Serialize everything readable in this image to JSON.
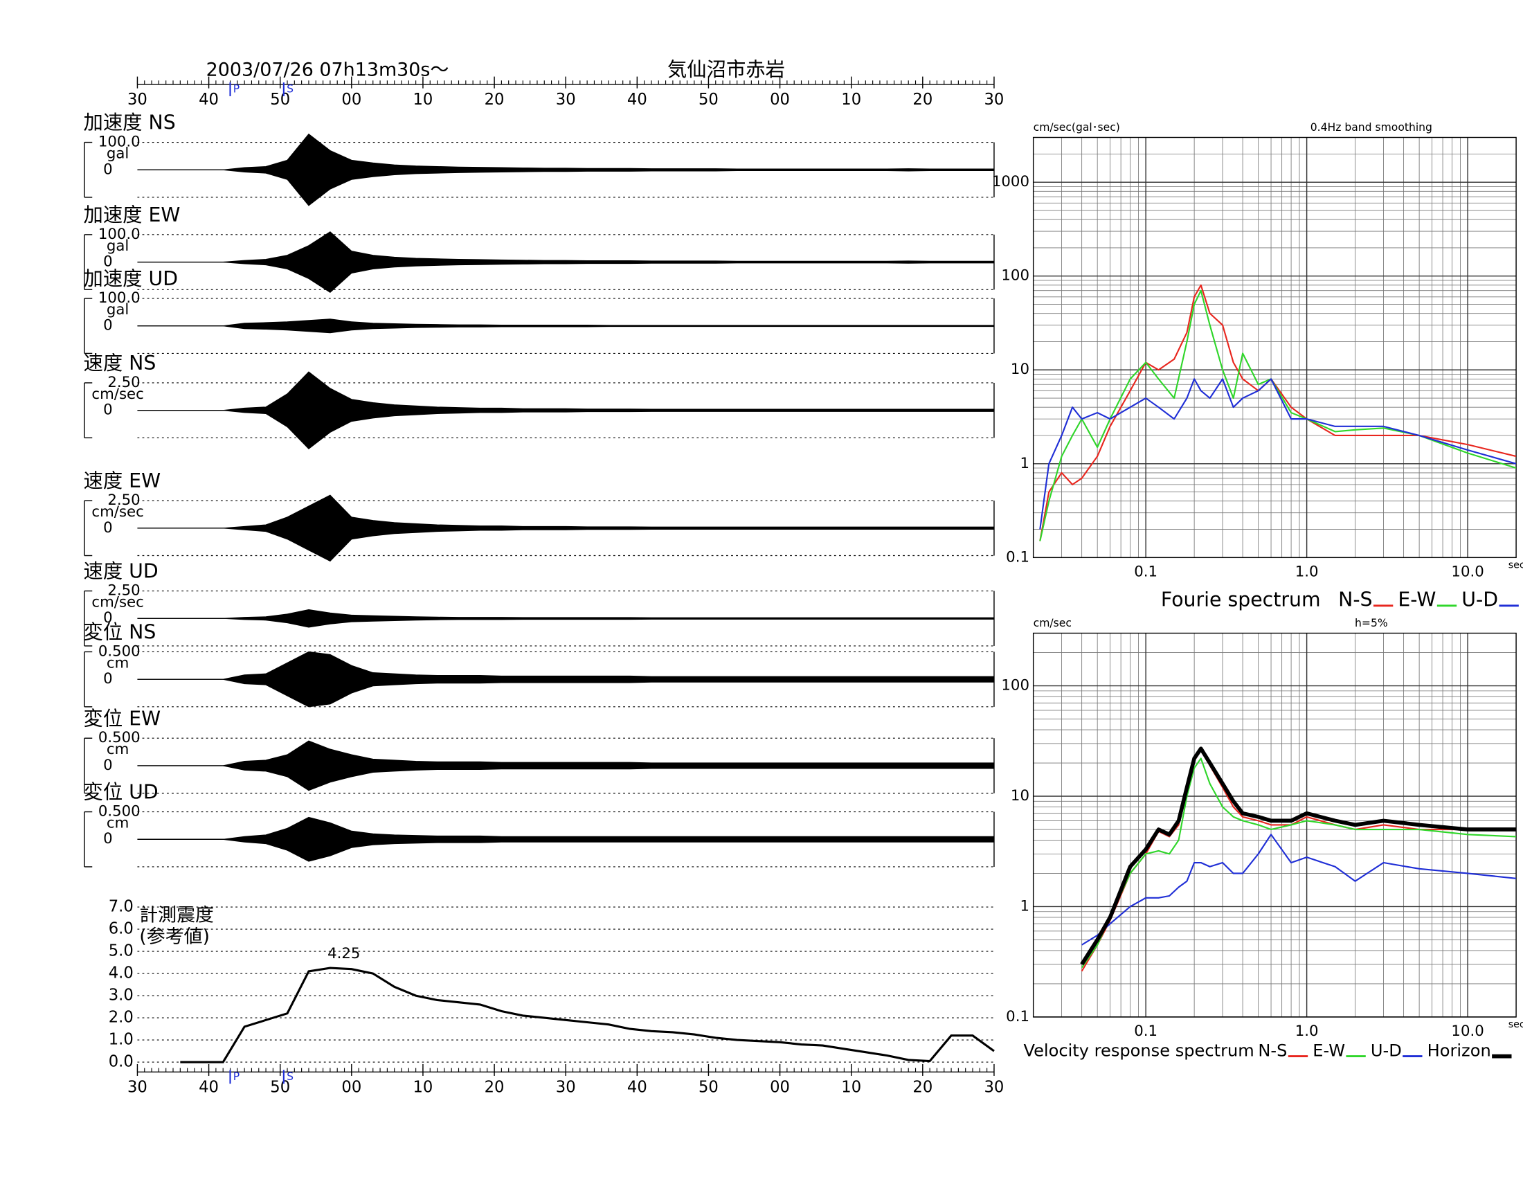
{
  "chart_data": [
    {
      "type": "seismogram",
      "title": "2003/07/26  07h13m30s〜",
      "subtitle": "気仙沼市赤岩",
      "xlim": [
        30,
        150
      ],
      "xticks": [
        30,
        40,
        50,
        {
          "value": 60,
          "label": "00"
        },
        {
          "value": 70,
          "label": "10"
        },
        {
          "value": 80,
          "label": "20"
        },
        {
          "value": 90,
          "label": "30"
        },
        {
          "value": 100,
          "label": "40"
        },
        {
          "value": 110,
          "label": "50"
        },
        {
          "value": 120,
          "label": "00"
        },
        {
          "value": 130,
          "label": "10"
        },
        {
          "value": 140,
          "label": "20"
        },
        {
          "value": 150,
          "label": "30"
        }
      ],
      "phases": [
        {
          "value": 43,
          "label": "P"
        },
        {
          "value": 50.5,
          "label": "S"
        }
      ],
      "x": [
        30,
        33,
        36,
        39,
        42,
        45,
        48,
        51,
        54,
        57,
        60,
        63,
        66,
        69,
        72,
        75,
        78,
        81,
        84,
        87,
        90,
        93,
        96,
        99,
        102,
        105,
        108,
        111,
        114,
        117,
        120,
        123,
        126,
        129,
        132,
        135,
        138,
        141,
        144,
        147,
        150
      ],
      "panels": [
        {
          "name": "加速度 NS",
          "unit": "gal",
          "ylim": [
            -100,
            100
          ],
          "yticks": [
            {
              "value": 100,
              "label": "100.0"
            },
            0
          ],
          "values": [
            0,
            0,
            0,
            0,
            0,
            8,
            12,
            35,
            130,
            70,
            35,
            25,
            18,
            14,
            12,
            10,
            9,
            8,
            7,
            6,
            6,
            5,
            5,
            5,
            4,
            4,
            4,
            4,
            3,
            3,
            3,
            3,
            3,
            3,
            3,
            3,
            4,
            3,
            3,
            3,
            3
          ]
        },
        {
          "name": "加速度 EW",
          "unit": "gal",
          "ylim": [
            -100,
            100
          ],
          "yticks": [
            {
              "value": 100,
              "label": "100.0"
            },
            0
          ],
          "values": [
            0,
            0,
            0,
            0,
            0,
            6,
            10,
            25,
            60,
            110,
            40,
            25,
            18,
            14,
            12,
            10,
            9,
            8,
            7,
            6,
            6,
            5,
            5,
            5,
            4,
            4,
            4,
            4,
            3,
            3,
            3,
            3,
            3,
            3,
            3,
            3,
            4,
            3,
            3,
            3,
            3
          ]
        },
        {
          "name": "加速度 UD",
          "unit": "gal",
          "ylim": [
            -100,
            100
          ],
          "yticks": [
            {
              "value": 100,
              "label": "100.0"
            },
            0
          ],
          "values": [
            0,
            0,
            0,
            0,
            0,
            10,
            12,
            15,
            20,
            25,
            15,
            10,
            8,
            6,
            5,
            4,
            4,
            3,
            3,
            3,
            3,
            3,
            2,
            2,
            2,
            2,
            2,
            2,
            2,
            2,
            2,
            2,
            2,
            2,
            2,
            2,
            2,
            2,
            2,
            2,
            2
          ]
        },
        {
          "name": "速度 NS",
          "unit": "cm/sec",
          "ylim": [
            -2.5,
            2.5
          ],
          "yticks": [
            {
              "value": 2.5,
              "label": "2.50"
            },
            0
          ],
          "values": [
            0,
            0,
            0,
            0,
            0,
            0.2,
            0.3,
            1.5,
            3.5,
            2,
            1,
            0.7,
            0.5,
            0.4,
            0.3,
            0.25,
            0.2,
            0.2,
            0.15,
            0.15,
            0.15,
            0.12,
            0.12,
            0.12,
            0.1,
            0.1,
            0.1,
            0.1,
            0.1,
            0.1,
            0.1,
            0.1,
            0.1,
            0.1,
            0.1,
            0.1,
            0.1,
            0.1,
            0.1,
            0.1,
            0.1
          ]
        },
        {
          "name": "速度 EW",
          "unit": "cm/sec",
          "ylim": [
            -2.5,
            2.5
          ],
          "yticks": [
            {
              "value": 2.5,
              "label": "2.50"
            },
            0
          ],
          "values": [
            0,
            0,
            0,
            0,
            0,
            0.15,
            0.3,
            1,
            2,
            3,
            1,
            0.7,
            0.5,
            0.4,
            0.3,
            0.25,
            0.2,
            0.2,
            0.15,
            0.15,
            0.15,
            0.12,
            0.12,
            0.12,
            0.1,
            0.1,
            0.1,
            0.1,
            0.1,
            0.1,
            0.1,
            0.1,
            0.1,
            0.1,
            0.1,
            0.1,
            0.1,
            0.1,
            0.1,
            0.1,
            0.1
          ]
        },
        {
          "name": "速度 UD",
          "unit": "cm/sec",
          "ylim": [
            -2.5,
            2.5
          ],
          "yticks": [
            {
              "value": 2.5,
              "label": "2.50"
            },
            0
          ],
          "values": [
            0,
            0,
            0,
            0,
            0,
            0.1,
            0.15,
            0.4,
            0.8,
            0.5,
            0.3,
            0.25,
            0.2,
            0.15,
            0.12,
            0.1,
            0.1,
            0.1,
            0.08,
            0.08,
            0.08,
            0.08,
            0.08,
            0.08,
            0.07,
            0.07,
            0.07,
            0.07,
            0.07,
            0.07,
            0.07,
            0.07,
            0.07,
            0.07,
            0.07,
            0.07,
            0.07,
            0.07,
            0.07,
            0.07,
            0.07
          ]
        },
        {
          "name": "変位 NS",
          "unit": "cm",
          "ylim": [
            -0.5,
            0.5
          ],
          "yticks": [
            {
              "value": 0.5,
              "label": "0.500"
            },
            0
          ],
          "values": [
            0,
            0,
            0,
            0,
            0,
            0.08,
            0.1,
            0.3,
            0.5,
            0.45,
            0.25,
            0.12,
            0.1,
            0.08,
            0.07,
            0.07,
            0.07,
            0.06,
            0.06,
            0.06,
            0.06,
            0.06,
            0.06,
            0.06,
            0.05,
            0.05,
            0.05,
            0.05,
            0.05,
            0.05,
            0.05,
            0.05,
            0.05,
            0.05,
            0.05,
            0.05,
            0.05,
            0.05,
            0.05,
            0.05,
            0.05
          ]
        },
        {
          "name": "変位 EW",
          "unit": "cm",
          "ylim": [
            -0.5,
            0.5
          ],
          "yticks": [
            {
              "value": 0.5,
              "label": "0.500"
            },
            0
          ],
          "values": [
            0,
            0,
            0,
            0,
            0,
            0.08,
            0.1,
            0.2,
            0.45,
            0.3,
            0.2,
            0.12,
            0.1,
            0.08,
            0.07,
            0.07,
            0.07,
            0.06,
            0.06,
            0.06,
            0.06,
            0.06,
            0.06,
            0.06,
            0.05,
            0.05,
            0.05,
            0.05,
            0.05,
            0.05,
            0.05,
            0.05,
            0.05,
            0.05,
            0.05,
            0.05,
            0.05,
            0.05,
            0.05,
            0.05,
            0.05
          ]
        },
        {
          "name": "変位 UD",
          "unit": "cm",
          "ylim": [
            -0.5,
            0.5
          ],
          "yticks": [
            {
              "value": 0.5,
              "label": "0.500"
            },
            0
          ],
          "values": [
            0,
            0,
            0,
            0,
            0,
            0.05,
            0.08,
            0.2,
            0.4,
            0.3,
            0.15,
            0.1,
            0.08,
            0.07,
            0.06,
            0.06,
            0.06,
            0.05,
            0.05,
            0.05,
            0.05,
            0.05,
            0.05,
            0.05,
            0.05,
            0.05,
            0.05,
            0.05,
            0.05,
            0.05,
            0.05,
            0.05,
            0.05,
            0.05,
            0.05,
            0.05,
            0.05,
            0.05,
            0.05,
            0.05,
            0.05
          ]
        }
      ]
    },
    {
      "type": "line",
      "title": "計測震度",
      "subtitle": "(参考値)",
      "color": "#000000",
      "xlim": [
        30,
        150
      ],
      "xticks": [
        30,
        40,
        50,
        {
          "value": 60,
          "label": "00"
        },
        {
          "value": 70,
          "label": "10"
        },
        {
          "value": 80,
          "label": "20"
        },
        {
          "value": 90,
          "label": "30"
        },
        {
          "value": 100,
          "label": "40"
        },
        {
          "value": 110,
          "label": "50"
        },
        {
          "value": 120,
          "label": "00"
        },
        {
          "value": 130,
          "label": "10"
        },
        {
          "value": 140,
          "label": "20"
        },
        {
          "value": 150,
          "label": "30"
        }
      ],
      "phases": [
        {
          "value": 43,
          "label": "P"
        },
        {
          "value": 50.5,
          "label": "S"
        }
      ],
      "ylim": [
        0,
        7
      ],
      "yticks": [
        {
          "value": 0,
          "label": "0.0"
        },
        {
          "value": 1,
          "label": "1.0"
        },
        {
          "value": 2,
          "label": "2.0"
        },
        {
          "value": 3,
          "label": "3.0"
        },
        {
          "value": 4,
          "label": "4.0"
        },
        {
          "value": 5,
          "label": "5.0"
        },
        {
          "value": 6,
          "label": "6.0"
        },
        {
          "value": 7,
          "label": "7.0"
        }
      ],
      "grid": true,
      "peak_label": 4.25,
      "x": [
        30,
        33,
        36,
        39,
        42,
        45,
        48,
        51,
        54,
        57,
        60,
        63,
        66,
        69,
        72,
        75,
        78,
        81,
        84,
        87,
        90,
        93,
        96,
        99,
        102,
        105,
        108,
        111,
        114,
        117,
        120,
        123,
        126,
        129,
        132,
        135,
        138,
        141,
        144,
        147,
        150
      ],
      "values": [
        null,
        null,
        0,
        0,
        0,
        1.6,
        1.9,
        2.2,
        4.1,
        4.25,
        4.2,
        4.0,
        3.4,
        3.0,
        2.8,
        2.7,
        2.6,
        2.3,
        2.1,
        2.0,
        1.9,
        1.8,
        1.7,
        1.5,
        1.4,
        1.35,
        1.25,
        1.1,
        1.0,
        0.95,
        0.9,
        0.8,
        0.75,
        0.6,
        0.45,
        0.3,
        0.1,
        0.05,
        1.2,
        1.2,
        0.5
      ]
    },
    {
      "type": "line",
      "log_x": true,
      "log_y": true,
      "grid": true,
      "title": "cm/sec(gal･sec)",
      "subtitle": "0.4Hz band smoothing",
      "xlabel": "sec",
      "legend_title": "Fourie spectrum",
      "xlim": [
        0.02,
        20
      ],
      "ylim": [
        0.1,
        3000
      ],
      "xticks": [
        0.1,
        {
          "value": 1,
          "label": "1.0"
        },
        {
          "value": 10,
          "label": "10.0"
        }
      ],
      "yticks": [
        0.1,
        1,
        10,
        100,
        1000
      ],
      "x": [
        0.022,
        0.025,
        0.03,
        0.035,
        0.04,
        0.05,
        0.06,
        0.08,
        0.1,
        0.12,
        0.15,
        0.18,
        0.2,
        0.22,
        0.25,
        0.3,
        0.35,
        0.4,
        0.5,
        0.6,
        0.8,
        1,
        1.5,
        2,
        3,
        5,
        10,
        20
      ],
      "series": [
        {
          "name": "N-S",
          "color": "#e8261e",
          "values": [
            0.15,
            0.5,
            0.8,
            0.6,
            0.7,
            1.2,
            2.5,
            6,
            12,
            10,
            13,
            25,
            60,
            80,
            40,
            30,
            12,
            8,
            6,
            8,
            4,
            3,
            2,
            2,
            2,
            2,
            1.6,
            1.2
          ]
        },
        {
          "name": "E-W",
          "color": "#2fd62a",
          "values": [
            0.15,
            0.4,
            1.2,
            2,
            3,
            1.5,
            3,
            8,
            12,
            8,
            5,
            20,
            50,
            70,
            30,
            10,
            5,
            15,
            7,
            8,
            3.5,
            3,
            2.2,
            2.3,
            2.4,
            2,
            1.3,
            0.9
          ]
        },
        {
          "name": "U-D",
          "color": "#1f2ed6",
          "values": [
            0.2,
            1,
            2,
            4,
            3,
            3.5,
            3,
            4,
            5,
            4,
            3,
            5,
            8,
            6,
            5,
            8,
            4,
            5,
            6,
            8,
            3,
            3,
            2.5,
            2.5,
            2.5,
            2,
            1.4,
            1
          ]
        }
      ]
    },
    {
      "type": "line",
      "log_x": true,
      "log_y": true,
      "grid": true,
      "title": "cm/sec",
      "subtitle": "h=5%",
      "xlabel": "sec",
      "legend_title": "Velocity response spectrum",
      "xlim": [
        0.02,
        20
      ],
      "ylim": [
        0.1,
        300
      ],
      "xticks": [
        0.1,
        {
          "value": 1,
          "label": "1.0"
        },
        {
          "value": 10,
          "label": "10.0"
        }
      ],
      "yticks": [
        0.1,
        1,
        10,
        100
      ],
      "x": [
        0.04,
        0.05,
        0.06,
        0.08,
        0.1,
        0.12,
        0.14,
        0.16,
        0.18,
        0.2,
        0.22,
        0.25,
        0.3,
        0.35,
        0.4,
        0.5,
        0.6,
        0.8,
        1,
        1.5,
        2,
        3,
        5,
        10,
        20
      ],
      "series": [
        {
          "name": "N-S",
          "color": "#e8261e",
          "values": [
            0.26,
            0.45,
            0.75,
            2,
            3,
            4.8,
            4.3,
            5.5,
            11,
            21,
            26,
            19,
            12,
            8,
            6.5,
            6,
            5.5,
            5.5,
            6.5,
            5.5,
            5,
            5.5,
            5,
            5,
            5
          ]
        },
        {
          "name": "E-W",
          "color": "#2fd62a",
          "values": [
            0.28,
            0.45,
            0.8,
            2,
            3,
            3.2,
            3,
            4,
            10,
            18,
            22,
            13,
            8,
            6.5,
            6,
            5.5,
            5,
            5.5,
            6,
            5.5,
            5,
            5,
            5,
            4.5,
            4.3
          ]
        },
        {
          "name": "U-D",
          "color": "#1f2ed6",
          "values": [
            0.45,
            0.55,
            0.7,
            1,
            1.2,
            1.2,
            1.25,
            1.5,
            1.7,
            2.5,
            2.5,
            2.3,
            2.5,
            2,
            2,
            3,
            4.5,
            2.5,
            2.8,
            2.3,
            1.7,
            2.5,
            2.2,
            2,
            1.8
          ]
        },
        {
          "name": "Horizon",
          "color": "#000000",
          "values": [
            0.3,
            0.5,
            0.8,
            2.3,
            3.3,
            5,
            4.5,
            6,
            12,
            22,
            27,
            20,
            13,
            9,
            7,
            6.5,
            6,
            6,
            7,
            6,
            5.5,
            6,
            5.5,
            5,
            5
          ]
        }
      ]
    }
  ]
}
